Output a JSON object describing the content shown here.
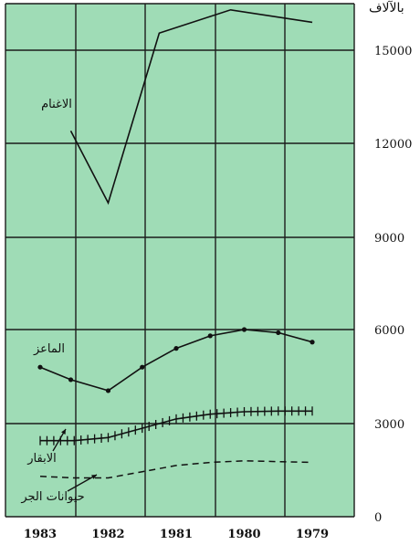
{
  "chart_data": {
    "type": "line",
    "x": [
      "1983",
      "1982",
      "1981",
      "1980",
      "1979"
    ],
    "ylim": [
      0,
      16500
    ],
    "yticks": [
      "0",
      "3000",
      "6000",
      "9000",
      "12000",
      "15000"
    ],
    "unit_label": "بالآلاف",
    "grid": true,
    "background_color": "#9fdcb6",
    "series": [
      {
        "name": "الاغنام",
        "style": "solid",
        "points": [
          [
            1982.55,
            12400
          ],
          [
            1982.0,
            10100
          ],
          [
            1981.25,
            15550
          ],
          [
            1980.2,
            16300
          ],
          [
            1979.0,
            15900
          ]
        ]
      },
      {
        "name": "الماعز",
        "style": "dots",
        "points": [
          [
            1983.0,
            4800
          ],
          [
            1982.55,
            4400
          ],
          [
            1982.0,
            4050
          ],
          [
            1981.5,
            4800
          ],
          [
            1981.0,
            5400
          ],
          [
            1980.5,
            5800
          ],
          [
            1980.0,
            6000
          ],
          [
            1979.5,
            5900
          ],
          [
            1979.0,
            5600
          ]
        ]
      },
      {
        "name": "الابقار",
        "style": "crosses",
        "points": [
          [
            1983.0,
            2450
          ],
          [
            1982.5,
            2450
          ],
          [
            1982.0,
            2550
          ],
          [
            1981.5,
            2850
          ],
          [
            1981.0,
            3150
          ],
          [
            1980.5,
            3300
          ],
          [
            1980.0,
            3380
          ],
          [
            1979.5,
            3400
          ],
          [
            1979.0,
            3400
          ]
        ]
      },
      {
        "name": "حيوانات الجر",
        "style": "dashed",
        "points": [
          [
            1983.0,
            1300
          ],
          [
            1982.5,
            1250
          ],
          [
            1982.0,
            1250
          ],
          [
            1981.5,
            1450
          ],
          [
            1981.0,
            1650
          ],
          [
            1980.5,
            1750
          ],
          [
            1980.0,
            1800
          ],
          [
            1979.0,
            1750
          ]
        ]
      }
    ]
  }
}
